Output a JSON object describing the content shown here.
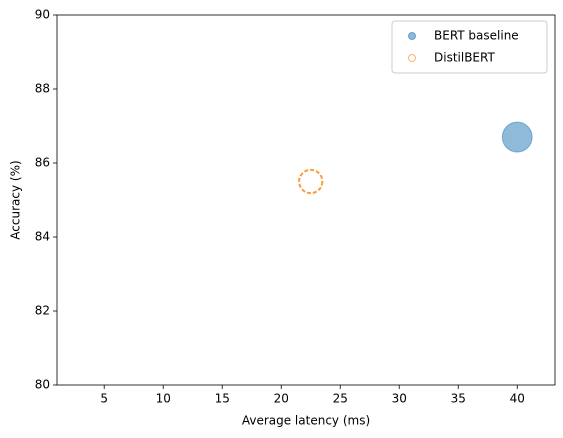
{
  "chart_data": {
    "type": "scatter",
    "xlabel": "Average latency (ms)",
    "ylabel": "Accuracy (%)",
    "xlim": [
      1,
      43.2
    ],
    "ylim": [
      80,
      90
    ],
    "xticks": [
      5,
      10,
      15,
      20,
      25,
      30,
      35,
      40
    ],
    "yticks": [
      80,
      82,
      84,
      86,
      88,
      90
    ],
    "legend": "upper right",
    "series": [
      {
        "name": "BERT baseline",
        "color": "#1f77b4",
        "filled": true,
        "dashed": false,
        "x": [
          40
        ],
        "values": [
          86.7
        ],
        "sizes": [
          418
        ]
      },
      {
        "name": "DistilBERT",
        "color": "#ff7f0e",
        "filled": false,
        "dashed": true,
        "x": [
          22.5
        ],
        "values": [
          85.5
        ],
        "sizes": [
          255
        ]
      }
    ]
  }
}
